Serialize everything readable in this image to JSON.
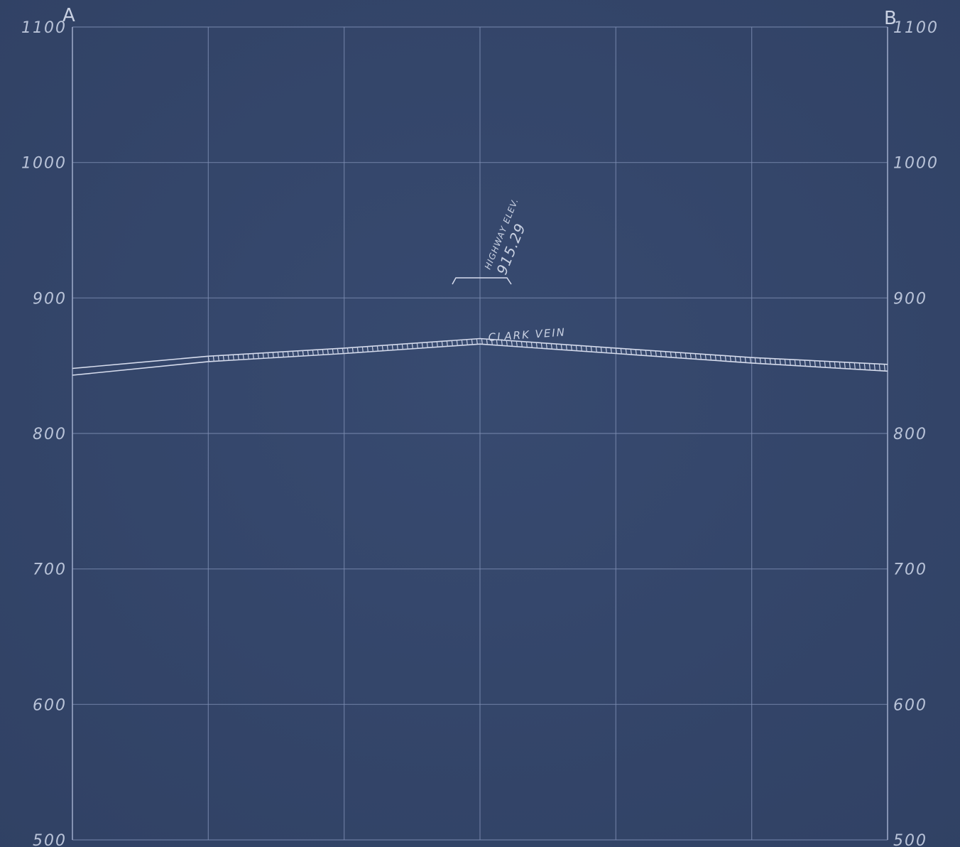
{
  "section": {
    "left_label": "A",
    "right_label": "B",
    "elevation_ticks": [
      "1100",
      "1000",
      "900",
      "800",
      "700",
      "600",
      "500"
    ],
    "elev_range": [
      500,
      1100
    ],
    "vertical_divisions": 6
  },
  "vein": {
    "label": "CLARK VEIN",
    "profile_top": [
      [
        0,
        848
      ],
      [
        1,
        857
      ],
      [
        2,
        863
      ],
      [
        3,
        870
      ],
      [
        4,
        863
      ],
      [
        5,
        856
      ],
      [
        6,
        851
      ]
    ],
    "profile_bottom": [
      [
        0,
        843
      ],
      [
        1,
        853
      ],
      [
        2,
        859
      ],
      [
        3,
        866
      ],
      [
        4,
        859
      ],
      [
        5,
        852
      ],
      [
        6,
        846
      ]
    ]
  },
  "highway": {
    "line1": "HIGHWAY ELEV.",
    "line2": "915.29",
    "elevation": 915.29,
    "station": 3.0
  },
  "colors": {
    "paper": "#34466a",
    "grid": "#7d8db2",
    "ink": "#d6dced"
  }
}
